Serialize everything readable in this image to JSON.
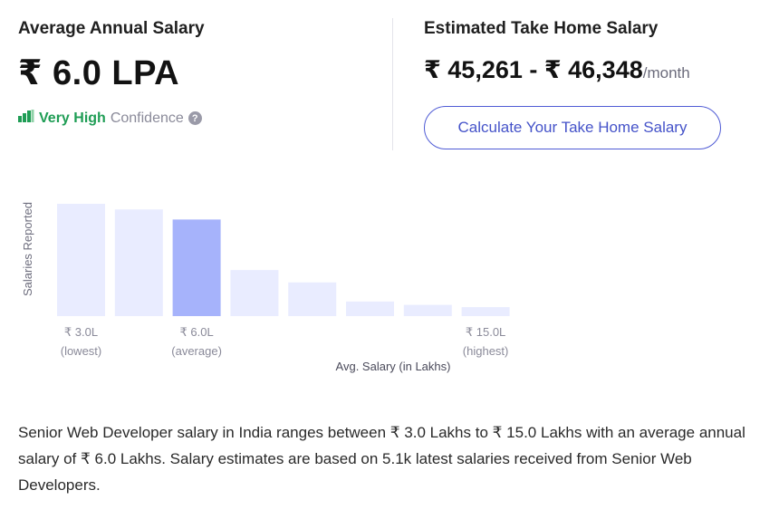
{
  "left": {
    "heading": "Average Annual Salary",
    "value": "₹ 6.0 LPA",
    "confidence_high": "Very High",
    "confidence_label": "Confidence",
    "help_glyph": "?"
  },
  "right": {
    "heading": "Estimated Take Home Salary",
    "range": "₹ 45,261 - ₹ 46,348",
    "period": "/month",
    "button_label": "Calculate Your Take Home Salary"
  },
  "icons": {
    "confidence": "signal-bars-icon",
    "help": "question-circle-icon"
  },
  "colors": {
    "bar": "#e9ecff",
    "bar_highlight": "#a6b3fb",
    "confidence_green": "#1f9d55",
    "accent": "#4553c9"
  },
  "chart_data": {
    "type": "bar",
    "ylabel": "Salaries Reported",
    "xlabel": "Avg. Salary (in Lakhs)",
    "values": [
      100,
      95,
      86,
      41,
      30,
      13,
      10,
      8
    ],
    "highlight_index": 2,
    "ylim": [
      0,
      100
    ],
    "y_axis_visible": false,
    "grid": false,
    "tick_labels": [
      {
        "index": 0,
        "value": "₹ 3.0L",
        "note": "(lowest)"
      },
      {
        "index": 2,
        "value": "₹ 6.0L",
        "note": "(average)"
      },
      {
        "index": 7,
        "value": "₹ 15.0L",
        "note": "(highest)"
      }
    ]
  },
  "description": "Senior Web Developer salary in India ranges between ₹ 3.0 Lakhs to ₹ 15.0 Lakhs with an average annual salary of ₹ 6.0 Lakhs. Salary estimates are based on 5.1k latest salaries received from Senior Web Developers."
}
